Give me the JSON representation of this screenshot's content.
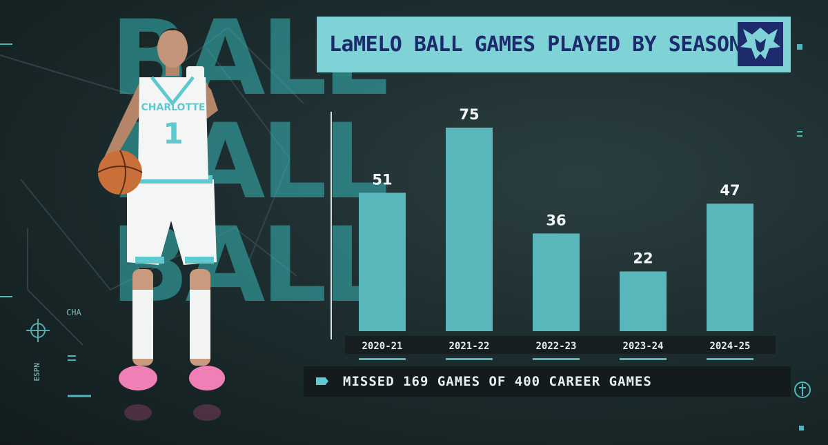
{
  "title": "LaMELO BALL GAMES PLAYED BY SEASON",
  "footer_note": "MISSED 169 GAMES OF 400 CAREER GAMES",
  "team_code": "CHA",
  "watermark_name": "BALL",
  "network_mark": "ESPN",
  "jersey": {
    "team": "CHARLOTTE",
    "number": "1"
  },
  "colors": {
    "bar": "#59b6bb",
    "title_bg": "#7fd2d6",
    "title_text": "#1d2a6b",
    "label_text": "#f2f4f5",
    "axis_strip": "#161e20",
    "footer_bg": "#131b1d"
  },
  "chart_data": {
    "type": "bar",
    "title": "LaMELO BALL GAMES PLAYED BY SEASON",
    "categories": [
      "2020-21",
      "2021-22",
      "2022-23",
      "2023-24",
      "2024-25"
    ],
    "values": [
      51,
      75,
      36,
      22,
      47
    ],
    "data_labels": [
      "51",
      "75",
      "36",
      "22",
      "47"
    ],
    "ylim": [
      0,
      75
    ],
    "grid": false,
    "legend": "none"
  }
}
